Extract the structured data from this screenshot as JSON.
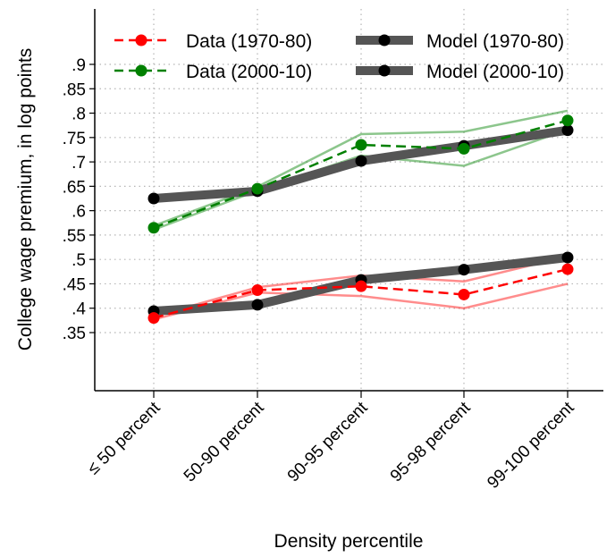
{
  "chart_data": {
    "type": "line",
    "xlabel": "Density percentile",
    "ylabel": "College wage premium, in log points",
    "categories": [
      "≤ 50 percent",
      "50-90 percent",
      "90-95 percent",
      "95-98 percent",
      "99-100 percent"
    ],
    "yticks": [
      ".35",
      ".4",
      ".45",
      ".5",
      ".55",
      ".6",
      ".65",
      ".7",
      ".75",
      ".8",
      ".85",
      ".9"
    ],
    "ylim": [
      0.3,
      0.98
    ],
    "grid": true,
    "legend_position": "top",
    "series": [
      {
        "name": "Data (1970-80)",
        "kind": "data",
        "color": "#ff0000",
        "values": [
          0.38,
          0.437,
          0.445,
          0.428,
          0.48
        ],
        "ci_upper": [
          0.383,
          0.443,
          0.467,
          0.455,
          0.506
        ],
        "ci_lower": [
          0.377,
          0.432,
          0.425,
          0.4,
          0.45
        ]
      },
      {
        "name": "Data (2000-10)",
        "kind": "data",
        "color": "#008000",
        "values": [
          0.565,
          0.645,
          0.735,
          0.727,
          0.785
        ],
        "ci_upper": [
          0.569,
          0.649,
          0.757,
          0.762,
          0.805
        ],
        "ci_lower": [
          0.561,
          0.641,
          0.713,
          0.692,
          0.766
        ]
      },
      {
        "name": "Model (1970-80)",
        "kind": "model",
        "color": "#555555",
        "values": [
          0.394,
          0.407,
          0.458,
          0.479,
          0.504
        ]
      },
      {
        "name": "Model (2000-10)",
        "kind": "model",
        "color": "#555555",
        "values": [
          0.625,
          0.64,
          0.702,
          0.733,
          0.765
        ]
      }
    ]
  }
}
